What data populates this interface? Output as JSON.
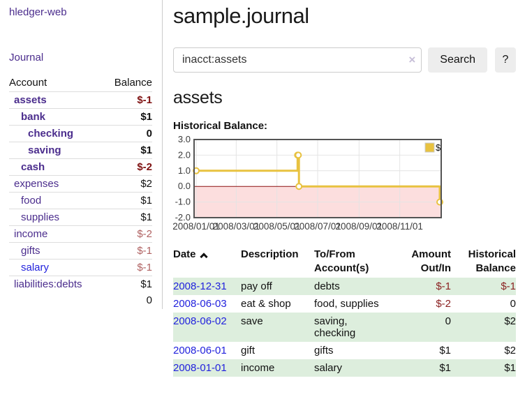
{
  "sidebar": {
    "brand": "hledger-web",
    "journal_link": "Journal",
    "accounts_table": {
      "headers": [
        "Account",
        "Balance"
      ],
      "rows": [
        {
          "account": "assets",
          "balance": "$-1",
          "level": 0,
          "bold": true,
          "negative": true
        },
        {
          "account": "bank",
          "balance": "$1",
          "level": 1,
          "bold": true,
          "negative": false
        },
        {
          "account": "checking",
          "balance": "0",
          "level": 2,
          "bold": true,
          "negative": false
        },
        {
          "account": "saving",
          "balance": "$1",
          "level": 2,
          "bold": true,
          "negative": false
        },
        {
          "account": "cash",
          "balance": "$-2",
          "level": 1,
          "bold": true,
          "negative": true
        },
        {
          "account": "expenses",
          "balance": "$2",
          "level": 0,
          "bold": false,
          "negative": false
        },
        {
          "account": "food",
          "balance": "$1",
          "level": 1,
          "bold": false,
          "negative": false
        },
        {
          "account": "supplies",
          "balance": "$1",
          "level": 1,
          "bold": false,
          "negative": false
        },
        {
          "account": "income",
          "balance": "$-2",
          "level": 0,
          "bold": false,
          "negative": true
        },
        {
          "account": "gifts",
          "balance": "$-1",
          "level": 1,
          "bold": false,
          "negative": true
        },
        {
          "account": "salary",
          "balance": "$-1",
          "level": 1,
          "bold": false,
          "negative": true,
          "unvisited": true
        },
        {
          "account": "liabilities:debts",
          "balance": "$1",
          "level": 0,
          "bold": false,
          "negative": false
        }
      ],
      "total": "0"
    }
  },
  "main": {
    "title": "sample.journal",
    "search": {
      "value": "inacct:assets",
      "clear_icon": "×",
      "button_label": "Search",
      "help_label": "?"
    },
    "account_heading": "assets",
    "chart_heading": "Historical Balance:",
    "register_table": {
      "headers": [
        "Date",
        "Description",
        "To/From Account(s)",
        "Amount Out/In",
        "Historical Balance"
      ],
      "rows": [
        {
          "date": "2008-12-31",
          "description": "pay off",
          "accounts": "debts",
          "amount": "$-1",
          "amount_negative": true,
          "balance": "$-1",
          "balance_negative": true
        },
        {
          "date": "2008-06-03",
          "description": "eat & shop",
          "accounts": "food, supplies",
          "amount": "$-2",
          "amount_negative": true,
          "balance": "0",
          "balance_negative": false
        },
        {
          "date": "2008-06-02",
          "description": "save",
          "accounts": "saving, checking",
          "amount": "0",
          "amount_negative": false,
          "balance": "$2",
          "balance_negative": false
        },
        {
          "date": "2008-06-01",
          "description": "gift",
          "accounts": "gifts",
          "amount": "$1",
          "amount_negative": false,
          "balance": "$2",
          "balance_negative": false
        },
        {
          "date": "2008-01-01",
          "description": "income",
          "accounts": "salary",
          "amount": "$1",
          "amount_negative": false,
          "balance": "$1",
          "balance_negative": false
        }
      ]
    }
  },
  "chart_data": {
    "type": "line",
    "style": "step",
    "title": "Historical Balance:",
    "series": [
      {
        "name": "$",
        "color": "#e8c240",
        "points": [
          [
            "2008-01-01",
            1
          ],
          [
            "2008-06-01",
            2
          ],
          [
            "2008-06-02",
            2
          ],
          [
            "2008-06-03",
            0
          ],
          [
            "2008-12-31",
            -1
          ]
        ]
      }
    ],
    "xlim": [
      "2008-01-01",
      "2008-12-31"
    ],
    "ylim": [
      -2,
      3
    ],
    "y_ticks": [
      3.0,
      2.0,
      1.0,
      0.0,
      -1.0,
      -2.0
    ],
    "x_ticks": [
      "2008/01/01",
      "2008/03/01",
      "2008/05/01",
      "2008/07/01",
      "2008/09/01",
      "2008/11/01"
    ],
    "legend": {
      "position": "top-right",
      "label": "$"
    },
    "grid": true,
    "negative_region_color": "#fcdede",
    "zero_line_color": "#8b1010",
    "grid_color": "#e4e4e4",
    "border_color": "#545454"
  },
  "colors": {
    "link_visited_purple": "#4b2d8d",
    "link_unvisited_blue": "#2222dd",
    "negative_bold_red": "#7f1212",
    "negative_light_red": "#b06262",
    "negative_table_red": "#8b2222",
    "row_stripe_green": "#ddeedd",
    "series_gold": "#e8c240"
  }
}
